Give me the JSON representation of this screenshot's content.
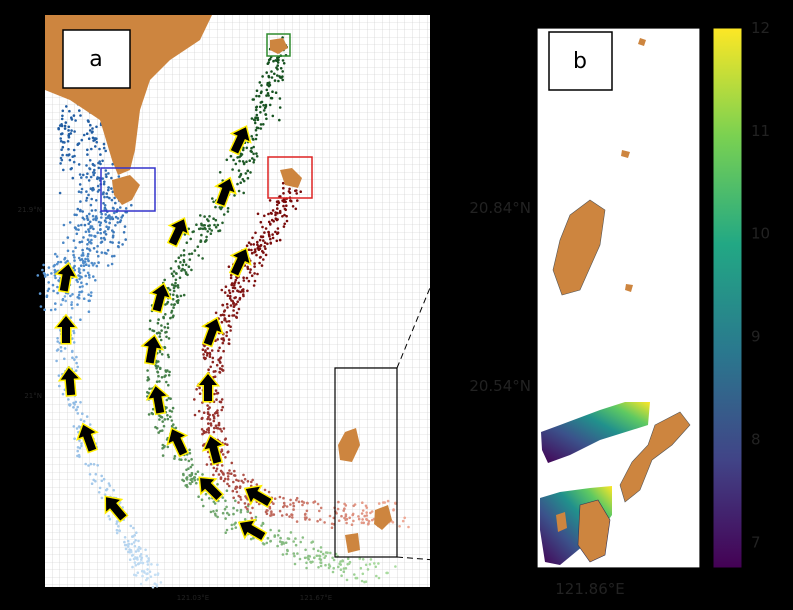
{
  "panel_a": {
    "label": "a",
    "lat_labels": [
      "21.9°N",
      "21°N"
    ],
    "lon_labels": [
      "121.03°E",
      "121.67°E"
    ]
  },
  "panel_b": {
    "label": "b",
    "lat_labels": [
      "20.84°N",
      "20.54°N"
    ],
    "lon_label": "121.86°E"
  },
  "colorbar": {
    "lim": [
      6.75,
      12
    ],
    "ticks": [
      7,
      8,
      9,
      10,
      11,
      12
    ],
    "colormap": "viridis"
  }
}
